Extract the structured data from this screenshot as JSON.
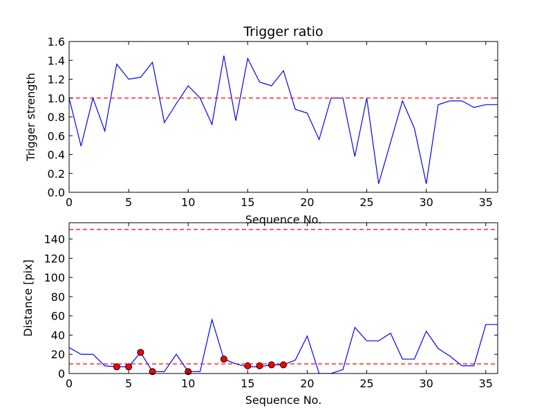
{
  "chart_data": [
    {
      "type": "line",
      "title": "Trigger ratio",
      "xlabel": "Sequence No.",
      "ylabel": "Trigger strength",
      "xlim": [
        0,
        36
      ],
      "ylim": [
        0,
        1.6
      ],
      "xticks": [
        "0",
        "5",
        "10",
        "15",
        "20",
        "25",
        "30",
        "35"
      ],
      "yticks": [
        "0.0",
        "0.2",
        "0.4",
        "0.6",
        "0.8",
        "1.0",
        "1.2",
        "1.4",
        "1.6"
      ],
      "grid": false,
      "series": [
        {
          "color": "#0000ff",
          "style": "solid",
          "x": [
            0,
            1,
            2,
            3,
            4,
            5,
            6,
            7,
            8,
            9,
            10,
            11,
            12,
            13,
            14,
            15,
            16,
            17,
            18,
            19,
            20,
            21,
            22,
            23,
            24,
            25,
            26,
            27,
            28,
            29,
            30,
            31,
            32,
            33,
            34,
            35,
            36
          ],
          "y": [
            1.0,
            0.49,
            1.0,
            0.65,
            1.36,
            1.2,
            1.22,
            1.38,
            0.74,
            0.94,
            1.13,
            1.0,
            0.72,
            1.45,
            0.76,
            1.42,
            1.17,
            1.13,
            1.29,
            0.88,
            0.84,
            0.56,
            1.0,
            1.0,
            0.38,
            1.0,
            0.09,
            0.53,
            0.97,
            0.68,
            0.09,
            0.93,
            0.97,
            0.97,
            0.9,
            0.93,
            0.93
          ]
        }
      ],
      "reference_lines": [
        {
          "y": 1.0,
          "color": "#ff0000",
          "style": "dashed"
        }
      ]
    },
    {
      "type": "line",
      "title": "",
      "xlabel": "Sequence No.",
      "ylabel": "Distance [pix]",
      "xlim": [
        0,
        36
      ],
      "ylim": [
        0,
        157
      ],
      "xticks": [
        "0",
        "5",
        "10",
        "15",
        "20",
        "25",
        "30",
        "35"
      ],
      "yticks": [
        "0",
        "20",
        "40",
        "60",
        "80",
        "100",
        "120",
        "140"
      ],
      "grid": false,
      "series": [
        {
          "color": "#0000ff",
          "style": "solid",
          "x": [
            0,
            1,
            2,
            3,
            4,
            5,
            6,
            7,
            8,
            9,
            10,
            11,
            12,
            13,
            14,
            15,
            16,
            17,
            18,
            19,
            20,
            21,
            22,
            23,
            24,
            25,
            26,
            27,
            28,
            29,
            30,
            31,
            32,
            33,
            34,
            35,
            36
          ],
          "y": [
            27,
            20,
            20,
            8,
            7,
            7,
            22,
            2,
            2,
            20,
            2,
            2,
            56,
            15,
            10,
            7,
            7,
            9,
            9,
            14,
            39,
            0,
            0,
            4,
            48,
            34,
            34,
            42,
            15,
            15,
            44,
            26,
            18,
            8,
            8,
            51,
            51
          ]
        },
        {
          "color": "#ff0000",
          "style": "markers",
          "x": [
            4,
            5,
            6,
            7,
            10,
            13,
            15,
            16,
            17,
            18
          ],
          "y": [
            7,
            7,
            22,
            2,
            2,
            15,
            8,
            8,
            9,
            9
          ]
        }
      ],
      "reference_lines": [
        {
          "y": 150,
          "color": "#ff0000",
          "style": "dashed"
        },
        {
          "y": 10,
          "color": "#ff0000",
          "style": "dashed"
        }
      ]
    }
  ]
}
